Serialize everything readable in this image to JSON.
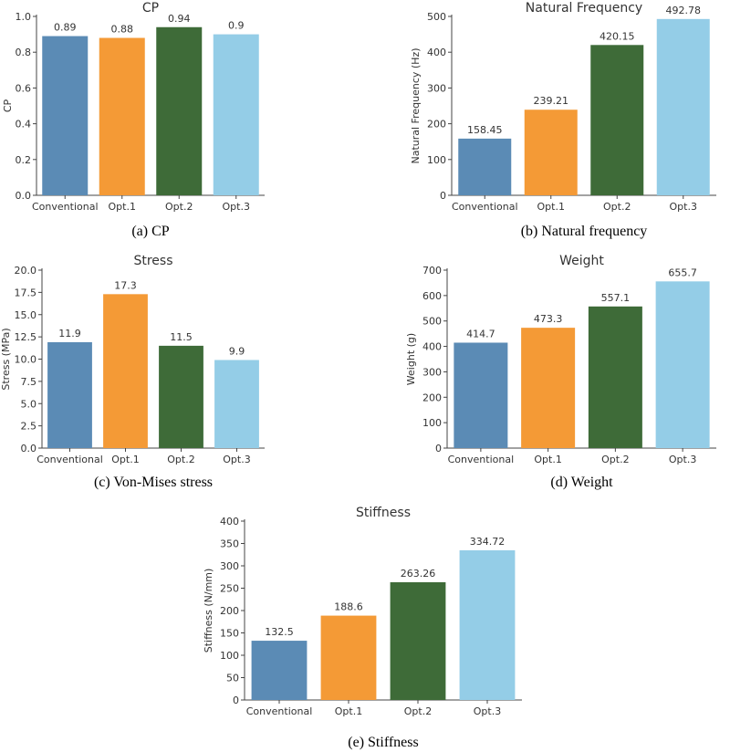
{
  "colors": [
    "#5b8bb5",
    "#f49a36",
    "#3e6b38",
    "#94cde7"
  ],
  "chart_data": [
    {
      "type": "bar",
      "title": "CP",
      "ylabel": "CP",
      "caption": "(a) CP",
      "categories": [
        "Conventional",
        "Opt.1",
        "Opt.2",
        "Opt.3"
      ],
      "values": [
        0.89,
        0.88,
        0.94,
        0.9
      ],
      "value_labels": [
        "0.89",
        "0.88",
        "0.94",
        "0.9"
      ],
      "ylim": [
        0,
        1.0
      ],
      "yticks": [
        0.0,
        0.2,
        0.4,
        0.6,
        0.8,
        1.0
      ],
      "ytick_labels": [
        "0.0",
        "0.2",
        "0.4",
        "0.6",
        "0.8",
        "1.0"
      ]
    },
    {
      "type": "bar",
      "title": "Natural Frequency",
      "ylabel": "Natural Frequency (Hz)",
      "caption": "(b) Natural frequency",
      "categories": [
        "Conventional",
        "Opt.1",
        "Opt.2",
        "Opt.3"
      ],
      "values": [
        158.45,
        239.21,
        420.15,
        492.78
      ],
      "value_labels": [
        "158.45",
        "239.21",
        "420.15",
        "492.78"
      ],
      "ylim": [
        0,
        500
      ],
      "yticks": [
        0,
        100,
        200,
        300,
        400,
        500
      ],
      "ytick_labels": [
        "0",
        "100",
        "200",
        "300",
        "400",
        "500"
      ]
    },
    {
      "type": "bar",
      "title": "Stress",
      "ylabel": "Stress (MPa)",
      "caption": "(c) Von-Mises stress",
      "categories": [
        "Conventional",
        "Opt.1",
        "Opt.2",
        "Opt.3"
      ],
      "values": [
        11.9,
        17.3,
        11.5,
        9.9
      ],
      "value_labels": [
        "11.9",
        "17.3",
        "11.5",
        "9.9"
      ],
      "ylim": [
        0,
        20
      ],
      "yticks": [
        0,
        2.5,
        5,
        7.5,
        10,
        12.5,
        15,
        17.5,
        20
      ],
      "ytick_labels": [
        "0.0",
        "2.5",
        "5.0",
        "7.5",
        "10.0",
        "12.5",
        "15.0",
        "17.5",
        "20.0"
      ]
    },
    {
      "type": "bar",
      "title": "Weight",
      "ylabel": "Weight (g)",
      "caption": "(d) Weight",
      "categories": [
        "Conventional",
        "Opt.1",
        "Opt.2",
        "Opt.3"
      ],
      "values": [
        414.7,
        473.3,
        557.1,
        655.7
      ],
      "value_labels": [
        "414.7",
        "473.3",
        "557.1",
        "655.7"
      ],
      "ylim": [
        0,
        700
      ],
      "yticks": [
        0,
        100,
        200,
        300,
        400,
        500,
        600,
        700
      ],
      "ytick_labels": [
        "0",
        "100",
        "200",
        "300",
        "400",
        "500",
        "600",
        "700"
      ]
    },
    {
      "type": "bar",
      "title": "Stiffness",
      "ylabel": "Stiffness (N/mm)",
      "caption": "(e) Stiffness",
      "categories": [
        "Conventional",
        "Opt.1",
        "Opt.2",
        "Opt.3"
      ],
      "values": [
        132.5,
        188.6,
        263.26,
        334.72
      ],
      "value_labels": [
        "132.5",
        "188.6",
        "263.26",
        "334.72"
      ],
      "ylim": [
        0,
        400
      ],
      "yticks": [
        0,
        50,
        100,
        150,
        200,
        250,
        300,
        350,
        400
      ],
      "ytick_labels": [
        "0",
        "50",
        "100",
        "150",
        "200",
        "250",
        "300",
        "350",
        "400"
      ]
    }
  ]
}
